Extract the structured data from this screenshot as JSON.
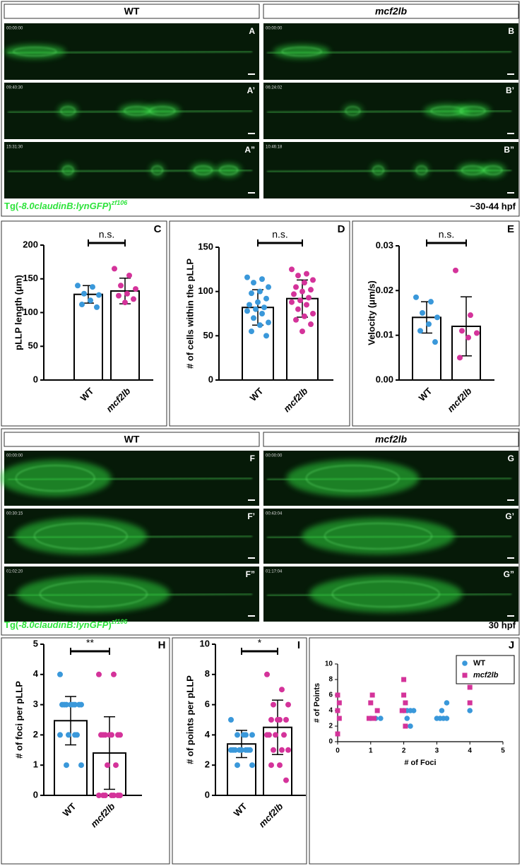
{
  "top_panel": {
    "columns": [
      {
        "header": "WT",
        "frames": [
          {
            "time": "00:00:00",
            "label": "A"
          },
          {
            "time": "09:40:30",
            "label": "A’"
          },
          {
            "time": "15:31:30",
            "label": "A”"
          }
        ]
      },
      {
        "header": "mcf2lb",
        "frames": [
          {
            "time": "00:00:00",
            "label": "B"
          },
          {
            "time": "06:24:02",
            "label": "B’"
          },
          {
            "time": "10:46:18",
            "label": "B”"
          }
        ]
      }
    ],
    "caption": {
      "prefix": "Tg(",
      "gene": "-8.0claudinB:lynGFP",
      "suffix": ")",
      "allele": "zf106"
    },
    "stage": "~30-44 hpf"
  },
  "bottom_panel": {
    "columns": [
      {
        "header": "WT",
        "frames": [
          {
            "time": "00:00:00",
            "label": "F"
          },
          {
            "time": "00:30:15",
            "label": "F’"
          },
          {
            "time": "01:02:20",
            "label": "F”"
          }
        ]
      },
      {
        "header": "mcf2lb",
        "frames": [
          {
            "time": "00:00:00",
            "label": "G"
          },
          {
            "time": "00:43:04",
            "label": "G’"
          },
          {
            "time": "01:17:04",
            "label": "G”"
          }
        ]
      }
    ],
    "caption": {
      "prefix": "Tg(",
      "gene": "-8.0claudinB:lynGFP",
      "suffix": ")",
      "allele": "zf106"
    },
    "stage": "30 hpf"
  },
  "chart_data": [
    {
      "type": "bar",
      "panel": "C",
      "ylabel": "pLLP length (μm)",
      "categories": [
        "WT",
        "mcf2lb"
      ],
      "values": [
        127,
        132
      ],
      "errors": [
        13,
        19
      ],
      "colors": [
        "#3a98da",
        "#d4339a"
      ],
      "points": [
        [
          140,
          138,
          128,
          126,
          118,
          112,
          108
        ],
        [
          165,
          155,
          140,
          135,
          128,
          125,
          120,
          115
        ]
      ],
      "ylim": [
        0,
        200
      ],
      "yticks": [
        0,
        50,
        100,
        150,
        200
      ],
      "significance": "n.s."
    },
    {
      "type": "bar",
      "panel": "D",
      "ylabel": "# of cells within the pLLP",
      "categories": [
        "WT",
        "mcf2lb"
      ],
      "values": [
        82,
        92
      ],
      "errors": [
        20,
        21
      ],
      "colors": [
        "#3a98da",
        "#d4339a"
      ],
      "points": [
        [
          116,
          114,
          110,
          105,
          100,
          98,
          92,
          88,
          85,
          82,
          80,
          78,
          75,
          70,
          65,
          62,
          55,
          50
        ],
        [
          125,
          120,
          118,
          113,
          110,
          105,
          102,
          100,
          97,
          93,
          90,
          88,
          85,
          80,
          75,
          72,
          68,
          63,
          55
        ]
      ],
      "ylim": [
        0,
        150
      ],
      "yticks": [
        0,
        50,
        100,
        150
      ],
      "significance": "n.s."
    },
    {
      "type": "bar",
      "panel": "E",
      "ylabel": "Velocity (μm/s)",
      "categories": [
        "WT",
        "mcf2lb"
      ],
      "values": [
        0.014,
        0.012
      ],
      "errors": [
        0.0035,
        0.0066
      ],
      "colors": [
        "#3a98da",
        "#d4339a"
      ],
      "points": [
        [
          0.0185,
          0.0175,
          0.015,
          0.014,
          0.0125,
          0.011,
          0.0085
        ],
        [
          0.0245,
          0.0145,
          0.011,
          0.0105,
          0.0095,
          0.005
        ]
      ],
      "ylim": [
        0,
        0.03
      ],
      "yticks": [
        {
          "value": 0,
          "label": "0.00"
        },
        0.01,
        0.02,
        0.03
      ],
      "significance": "n.s."
    },
    {
      "type": "bar",
      "panel": "H",
      "ylabel": "# of foci per pLLP",
      "categories": [
        "WT",
        "mcf2lb"
      ],
      "values": [
        2.47,
        1.4
      ],
      "errors": [
        0.8,
        1.2
      ],
      "colors": [
        "#3a98da",
        "#d4339a"
      ],
      "points": [
        [
          4,
          3,
          3,
          3,
          3,
          3,
          3,
          3,
          3,
          2,
          2,
          2,
          2,
          1,
          1
        ],
        [
          4,
          4,
          2,
          2,
          2,
          2,
          2,
          2,
          2,
          1,
          1,
          0,
          0,
          0,
          0,
          0,
          0,
          0
        ]
      ],
      "ylim": [
        0,
        5
      ],
      "yticks": [
        0,
        1,
        2,
        3,
        4,
        5
      ],
      "significance": "**"
    },
    {
      "type": "bar",
      "panel": "I",
      "ylabel": "# of points per pLLP",
      "categories": [
        "WT",
        "mcf2lb"
      ],
      "values": [
        3.4,
        4.5
      ],
      "errors": [
        0.9,
        1.8
      ],
      "colors": [
        "#3a98da",
        "#d4339a"
      ],
      "points": [
        [
          5,
          4,
          4,
          4,
          4,
          3,
          3,
          3,
          3,
          3,
          3,
          3,
          3,
          2,
          2
        ],
        [
          8,
          7,
          6,
          6,
          5,
          5,
          5,
          5,
          4,
          4,
          4,
          4,
          3,
          3,
          3,
          2,
          2,
          1
        ]
      ],
      "ylim": [
        0,
        10
      ],
      "yticks": [
        0,
        2,
        4,
        6,
        8,
        10
      ],
      "significance": "*"
    },
    {
      "type": "scatter",
      "panel": "J",
      "xlabel": "# of Foci",
      "ylabel": "# of Points",
      "legend": "top-right",
      "series": [
        {
          "name": "WT",
          "color": "#3a98da",
          "marker": "circle",
          "x": [
            1,
            1.15,
            1.3,
            2,
            2.1,
            2.2,
            2.3,
            2.1,
            2.2,
            3,
            3.1,
            3.2,
            3.3,
            3.15,
            3.3,
            4
          ],
          "y": [
            3,
            3,
            3,
            4,
            4,
            4,
            4,
            3,
            2,
            3,
            3,
            3,
            3,
            4,
            5,
            4
          ]
        },
        {
          "name": "mcf2lb",
          "color": "#d4339a",
          "marker": "square",
          "x": [
            0,
            0.05,
            0,
            0.05,
            0,
            1,
            1.05,
            1.1,
            1.2,
            0.95,
            2,
            1.95,
            2.05,
            2,
            2,
            2.05,
            4,
            4
          ],
          "y": [
            6,
            5,
            4,
            3,
            1,
            5,
            6,
            3,
            4,
            3,
            4,
            4,
            5,
            6,
            8,
            2,
            5,
            7
          ]
        }
      ],
      "xlim": [
        0,
        5
      ],
      "xticks": [
        0,
        1,
        2,
        3,
        4,
        5
      ],
      "ylim": [
        0,
        10
      ],
      "yticks": [
        0,
        2,
        4,
        6,
        8,
        10
      ]
    }
  ]
}
